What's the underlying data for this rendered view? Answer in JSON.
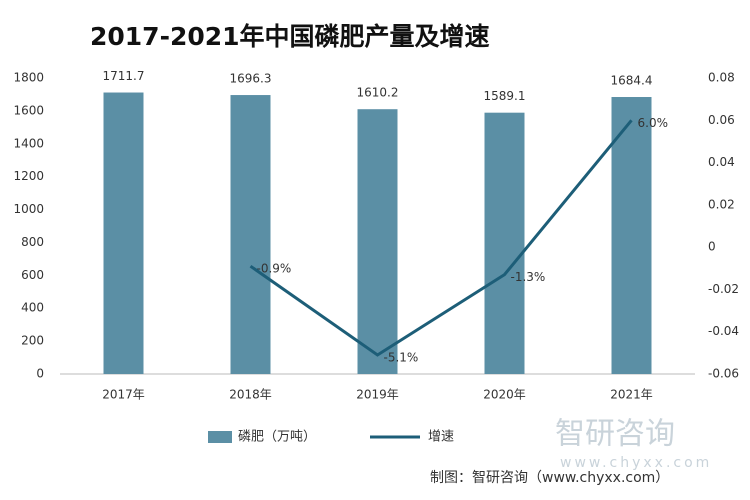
{
  "chart_data": {
    "type": "combo",
    "title": "2017-2021年中国磷肥产量及增速",
    "categories": [
      "2017年",
      "2018年",
      "2019年",
      "2020年",
      "2021年"
    ],
    "series": [
      {
        "name": "磷肥（万吨）",
        "type": "bar",
        "color": "#5b8fa5",
        "values": [
          1711.7,
          1696.3,
          1610.2,
          1589.1,
          1684.4
        ]
      },
      {
        "name": "增速",
        "type": "line",
        "axis": "y2",
        "color": "#1d5e78",
        "values": [
          null,
          -0.009,
          -0.051,
          -0.013,
          0.06
        ],
        "value_labels": [
          null,
          "-0.9%",
          "-5.1%",
          "-1.3%",
          "6.0%"
        ]
      }
    ],
    "ylim": [
      0,
      1800
    ],
    "yticks": [
      0,
      200,
      400,
      600,
      800,
      1000,
      1200,
      1400,
      1600,
      1800
    ],
    "y2lim": [
      -0.06,
      0.08
    ],
    "y2ticks": [
      -0.06,
      -0.04,
      -0.02,
      0,
      0.02,
      0.04,
      0.06,
      0.08
    ],
    "source": "制图：智研咨询（www.chyxx.com）",
    "watermark": "智研咨询",
    "watermark_url": "www.chyxx.com"
  }
}
